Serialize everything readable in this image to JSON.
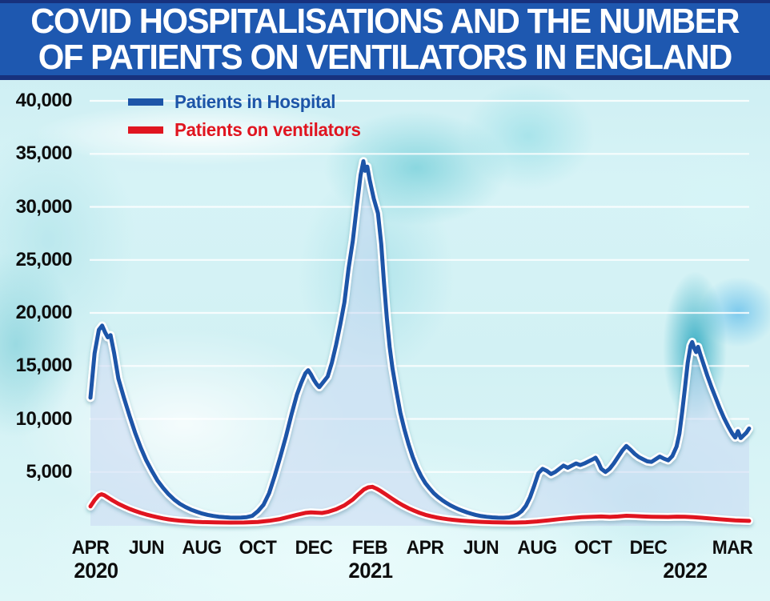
{
  "header": {
    "title_line1": "COVID HOSPITALISATIONS AND THE NUMBER",
    "title_line2": "OF PATIENTS ON VENTILATORS IN ENGLAND",
    "bg_color": "#1e58b0",
    "edge_color": "#17317d",
    "text_color": "#ffffff"
  },
  "legend": [
    {
      "label": "Patients in Hospital",
      "color": "#1d55a8"
    },
    {
      "label": "Patients on ventilators",
      "color": "#e01520"
    }
  ],
  "chart_data": {
    "type": "line",
    "title": "Covid hospitalisations and the number of patients on ventilators in England",
    "x_unit": "months since April 2020",
    "ylim": [
      0,
      41500
    ],
    "grid": true,
    "grid_color": "#ffffff",
    "legend_position": "top-left",
    "y_ticks": [
      {
        "label": "40,000",
        "value": 40000
      },
      {
        "label": "35,000",
        "value": 35000
      },
      {
        "label": "30,000",
        "value": 30000
      },
      {
        "label": "25,000",
        "value": 25000
      },
      {
        "label": "20,000",
        "value": 20000
      },
      {
        "label": "15,000",
        "value": 15000
      },
      {
        "label": "10,000",
        "value": 10000
      },
      {
        "label": "5,000",
        "value": 5000
      }
    ],
    "x_ticks": [
      {
        "label": "APR",
        "m": 0
      },
      {
        "label": "JUN",
        "m": 2
      },
      {
        "label": "AUG",
        "m": 4
      },
      {
        "label": "OCT",
        "m": 6
      },
      {
        "label": "DEC",
        "m": 8
      },
      {
        "label": "FEB",
        "m": 10
      },
      {
        "label": "APR",
        "m": 12
      },
      {
        "label": "JUN",
        "m": 14
      },
      {
        "label": "AUG",
        "m": 16
      },
      {
        "label": "OCT",
        "m": 18
      },
      {
        "label": "DEC",
        "m": 20
      },
      {
        "label": "MAR",
        "m": 23
      }
    ],
    "year_labels": [
      {
        "label": "2020",
        "m": 0.2
      },
      {
        "label": "2021",
        "m": 10.05
      },
      {
        "label": "2022",
        "m": 21.3
      }
    ],
    "series": [
      {
        "name": "Patients in Hospital",
        "color": "#1d55a8",
        "outline": "#ffffff",
        "fill": "rgba(203,216,242,0.55)",
        "points": [
          [
            0,
            12000
          ],
          [
            0.15,
            16200
          ],
          [
            0.3,
            18400
          ],
          [
            0.42,
            18800
          ],
          [
            0.52,
            18200
          ],
          [
            0.62,
            17700
          ],
          [
            0.72,
            17900
          ],
          [
            0.85,
            16200
          ],
          [
            1.0,
            13800
          ],
          [
            1.2,
            12000
          ],
          [
            1.4,
            10300
          ],
          [
            1.6,
            8700
          ],
          [
            1.8,
            7300
          ],
          [
            2.0,
            6100
          ],
          [
            2.2,
            5100
          ],
          [
            2.4,
            4200
          ],
          [
            2.6,
            3500
          ],
          [
            2.8,
            2900
          ],
          [
            3.0,
            2400
          ],
          [
            3.2,
            2000
          ],
          [
            3.4,
            1700
          ],
          [
            3.6,
            1450
          ],
          [
            3.8,
            1250
          ],
          [
            4.0,
            1080
          ],
          [
            4.2,
            950
          ],
          [
            4.4,
            850
          ],
          [
            4.6,
            780
          ],
          [
            4.8,
            730
          ],
          [
            5.0,
            700
          ],
          [
            5.2,
            690
          ],
          [
            5.4,
            700
          ],
          [
            5.6,
            740
          ],
          [
            5.8,
            860
          ],
          [
            6.0,
            1300
          ],
          [
            6.2,
            1900
          ],
          [
            6.4,
            3000
          ],
          [
            6.6,
            4600
          ],
          [
            6.8,
            6400
          ],
          [
            7.0,
            8300
          ],
          [
            7.2,
            10400
          ],
          [
            7.4,
            12300
          ],
          [
            7.55,
            13400
          ],
          [
            7.7,
            14300
          ],
          [
            7.8,
            14600
          ],
          [
            7.9,
            14200
          ],
          [
            8.0,
            13700
          ],
          [
            8.1,
            13300
          ],
          [
            8.2,
            13000
          ],
          [
            8.35,
            13500
          ],
          [
            8.5,
            14000
          ],
          [
            8.65,
            15300
          ],
          [
            8.8,
            17000
          ],
          [
            8.95,
            18900
          ],
          [
            9.1,
            21000
          ],
          [
            9.25,
            24200
          ],
          [
            9.4,
            26800
          ],
          [
            9.55,
            30200
          ],
          [
            9.68,
            33000
          ],
          [
            9.78,
            34300
          ],
          [
            9.84,
            33400
          ],
          [
            9.92,
            33800
          ],
          [
            10.0,
            32600
          ],
          [
            10.15,
            30800
          ],
          [
            10.3,
            29400
          ],
          [
            10.42,
            26500
          ],
          [
            10.52,
            22800
          ],
          [
            10.62,
            19500
          ],
          [
            10.72,
            16800
          ],
          [
            10.82,
            14800
          ],
          [
            10.95,
            12800
          ],
          [
            11.1,
            10600
          ],
          [
            11.25,
            9000
          ],
          [
            11.4,
            7600
          ],
          [
            11.55,
            6400
          ],
          [
            11.7,
            5400
          ],
          [
            11.85,
            4600
          ],
          [
            12.0,
            3950
          ],
          [
            12.15,
            3450
          ],
          [
            12.3,
            3000
          ],
          [
            12.45,
            2650
          ],
          [
            12.6,
            2350
          ],
          [
            12.75,
            2080
          ],
          [
            12.9,
            1850
          ],
          [
            13.05,
            1650
          ],
          [
            13.2,
            1470
          ],
          [
            13.35,
            1320
          ],
          [
            13.5,
            1180
          ],
          [
            13.65,
            1060
          ],
          [
            13.8,
            950
          ],
          [
            14.0,
            840
          ],
          [
            14.2,
            770
          ],
          [
            14.4,
            720
          ],
          [
            14.6,
            690
          ],
          [
            14.8,
            680
          ],
          [
            15.0,
            720
          ],
          [
            15.15,
            820
          ],
          [
            15.3,
            1000
          ],
          [
            15.45,
            1300
          ],
          [
            15.6,
            1800
          ],
          [
            15.75,
            2600
          ],
          [
            15.9,
            3700
          ],
          [
            16.05,
            4900
          ],
          [
            16.2,
            5300
          ],
          [
            16.35,
            5100
          ],
          [
            16.5,
            4800
          ],
          [
            16.65,
            5000
          ],
          [
            16.8,
            5300
          ],
          [
            16.95,
            5600
          ],
          [
            17.1,
            5400
          ],
          [
            17.25,
            5600
          ],
          [
            17.4,
            5800
          ],
          [
            17.55,
            5650
          ],
          [
            17.7,
            5800
          ],
          [
            17.85,
            6000
          ],
          [
            18.0,
            6200
          ],
          [
            18.1,
            6350
          ],
          [
            18.2,
            5900
          ],
          [
            18.3,
            5300
          ],
          [
            18.45,
            5000
          ],
          [
            18.6,
            5300
          ],
          [
            18.75,
            5800
          ],
          [
            18.9,
            6400
          ],
          [
            19.05,
            7000
          ],
          [
            19.2,
            7450
          ],
          [
            19.35,
            7100
          ],
          [
            19.5,
            6700
          ],
          [
            19.65,
            6400
          ],
          [
            19.8,
            6200
          ],
          [
            19.95,
            6000
          ],
          [
            20.1,
            5950
          ],
          [
            20.25,
            6200
          ],
          [
            20.4,
            6450
          ],
          [
            20.55,
            6250
          ],
          [
            20.7,
            6100
          ],
          [
            20.85,
            6500
          ],
          [
            21.0,
            7400
          ],
          [
            21.1,
            8600
          ],
          [
            21.2,
            10600
          ],
          [
            21.3,
            12900
          ],
          [
            21.4,
            15300
          ],
          [
            21.5,
            16900
          ],
          [
            21.56,
            17250
          ],
          [
            21.63,
            16700
          ],
          [
            21.7,
            16300
          ],
          [
            21.77,
            16800
          ],
          [
            21.85,
            16100
          ],
          [
            21.95,
            15300
          ],
          [
            22.1,
            14100
          ],
          [
            22.25,
            13000
          ],
          [
            22.4,
            12000
          ],
          [
            22.55,
            11000
          ],
          [
            22.7,
            10100
          ],
          [
            22.85,
            9300
          ],
          [
            23.0,
            8600
          ],
          [
            23.1,
            8250
          ],
          [
            23.2,
            8850
          ],
          [
            23.3,
            8200
          ],
          [
            23.4,
            8450
          ],
          [
            23.5,
            8700
          ],
          [
            23.6,
            9100
          ]
        ]
      },
      {
        "name": "Patients on ventilators",
        "color": "#e01520",
        "outline": "#ffffff",
        "points": [
          [
            0,
            1750
          ],
          [
            0.15,
            2350
          ],
          [
            0.3,
            2800
          ],
          [
            0.4,
            2900
          ],
          [
            0.5,
            2800
          ],
          [
            0.65,
            2550
          ],
          [
            0.8,
            2300
          ],
          [
            1.0,
            2000
          ],
          [
            1.2,
            1750
          ],
          [
            1.4,
            1520
          ],
          [
            1.6,
            1320
          ],
          [
            1.8,
            1140
          ],
          [
            2.0,
            990
          ],
          [
            2.2,
            850
          ],
          [
            2.4,
            730
          ],
          [
            2.6,
            620
          ],
          [
            2.8,
            530
          ],
          [
            3.0,
            460
          ],
          [
            3.25,
            395
          ],
          [
            3.5,
            345
          ],
          [
            3.75,
            305
          ],
          [
            4.0,
            275
          ],
          [
            4.5,
            240
          ],
          [
            5.0,
            225
          ],
          [
            5.5,
            235
          ],
          [
            6.0,
            285
          ],
          [
            6.4,
            390
          ],
          [
            6.8,
            560
          ],
          [
            7.1,
            760
          ],
          [
            7.4,
            960
          ],
          [
            7.7,
            1140
          ],
          [
            7.9,
            1190
          ],
          [
            8.1,
            1160
          ],
          [
            8.3,
            1130
          ],
          [
            8.5,
            1230
          ],
          [
            8.8,
            1480
          ],
          [
            9.1,
            1850
          ],
          [
            9.4,
            2400
          ],
          [
            9.6,
            2900
          ],
          [
            9.8,
            3350
          ],
          [
            9.95,
            3550
          ],
          [
            10.1,
            3600
          ],
          [
            10.25,
            3430
          ],
          [
            10.4,
            3200
          ],
          [
            10.6,
            2850
          ],
          [
            10.8,
            2500
          ],
          [
            11.0,
            2150
          ],
          [
            11.2,
            1850
          ],
          [
            11.4,
            1580
          ],
          [
            11.6,
            1340
          ],
          [
            11.8,
            1130
          ],
          [
            12.0,
            960
          ],
          [
            12.2,
            820
          ],
          [
            12.4,
            710
          ],
          [
            12.6,
            620
          ],
          [
            12.8,
            545
          ],
          [
            13.0,
            480
          ],
          [
            13.3,
            405
          ],
          [
            13.6,
            350
          ],
          [
            14.0,
            295
          ],
          [
            14.4,
            260
          ],
          [
            14.8,
            235
          ],
          [
            15.2,
            230
          ],
          [
            15.6,
            255
          ],
          [
            16.0,
            330
          ],
          [
            16.4,
            440
          ],
          [
            16.8,
            550
          ],
          [
            17.2,
            650
          ],
          [
            17.6,
            730
          ],
          [
            18.0,
            780
          ],
          [
            18.3,
            800
          ],
          [
            18.6,
            760
          ],
          [
            18.9,
            800
          ],
          [
            19.2,
            870
          ],
          [
            19.5,
            840
          ],
          [
            19.8,
            800
          ],
          [
            20.1,
            775
          ],
          [
            20.4,
            765
          ],
          [
            20.7,
            755
          ],
          [
            21.0,
            785
          ],
          [
            21.3,
            775
          ],
          [
            21.6,
            730
          ],
          [
            21.9,
            680
          ],
          [
            22.2,
            615
          ],
          [
            22.5,
            550
          ],
          [
            22.8,
            490
          ],
          [
            23.1,
            440
          ],
          [
            23.4,
            405
          ],
          [
            23.6,
            385
          ]
        ]
      }
    ]
  }
}
